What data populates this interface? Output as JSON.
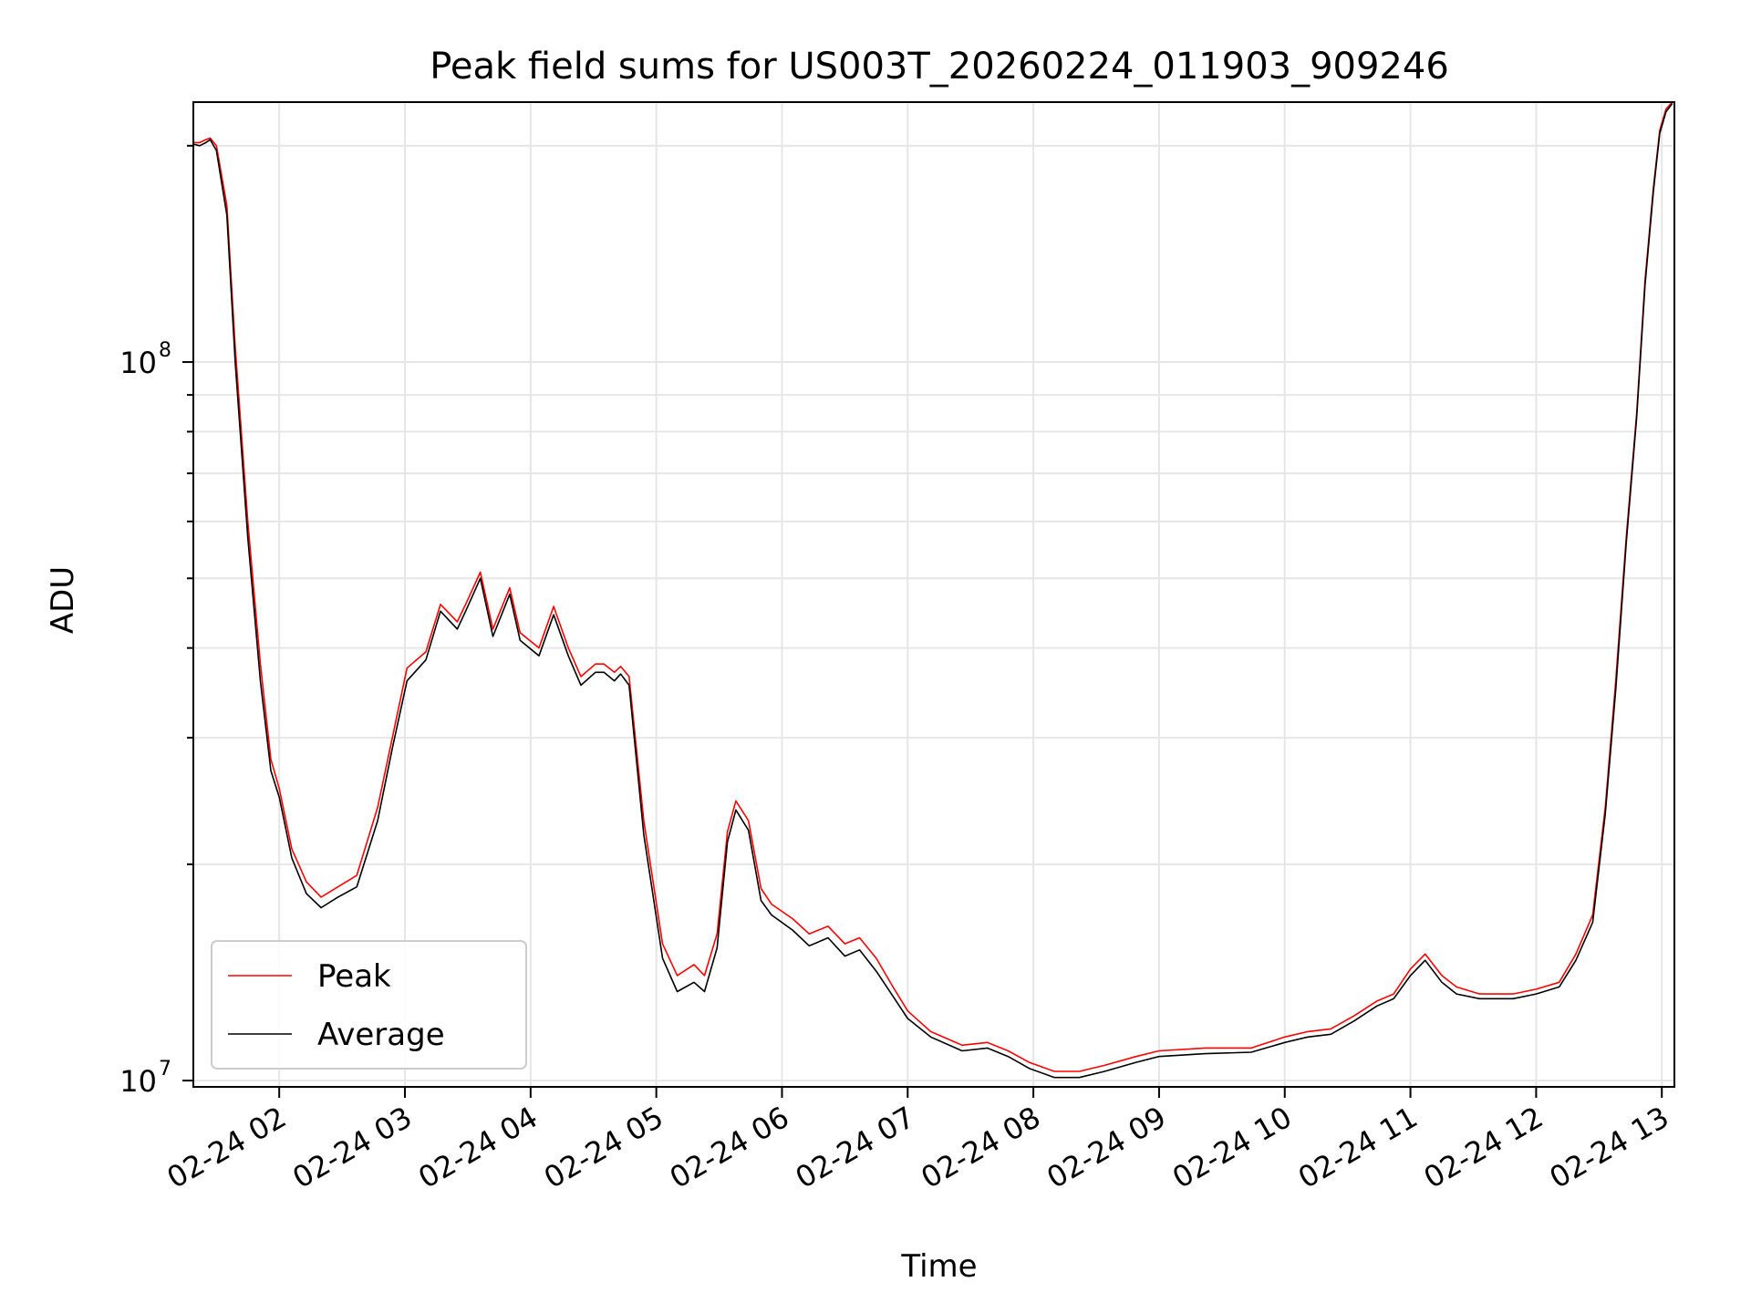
{
  "chart_data": {
    "type": "line",
    "title": "Peak field sums for US003T_20260224_011903_909246",
    "xlabel": "Time",
    "ylabel": "ADU",
    "yscale": "log",
    "ylim": [
      9800000,
      230000000
    ],
    "xlim": [
      "2026-02-24 01:19",
      "2026-02-24 13:06"
    ],
    "grid": true,
    "legend_position": "lower-left",
    "x_ticks": [
      {
        "value": "2026-02-24 02:00",
        "label": "02-24 02"
      },
      {
        "value": "2026-02-24 03:00",
        "label": "02-24 03"
      },
      {
        "value": "2026-02-24 04:00",
        "label": "02-24 04"
      },
      {
        "value": "2026-02-24 05:00",
        "label": "02-24 05"
      },
      {
        "value": "2026-02-24 06:00",
        "label": "02-24 06"
      },
      {
        "value": "2026-02-24 07:00",
        "label": "02-24 07"
      },
      {
        "value": "2026-02-24 08:00",
        "label": "02-24 08"
      },
      {
        "value": "2026-02-24 09:00",
        "label": "02-24 09"
      },
      {
        "value": "2026-02-24 10:00",
        "label": "02-24 10"
      },
      {
        "value": "2026-02-24 11:00",
        "label": "02-24 11"
      },
      {
        "value": "2026-02-24 12:00",
        "label": "02-24 12"
      },
      {
        "value": "2026-02-24 13:00",
        "label": "02-24 13"
      }
    ],
    "y_ticks": [
      {
        "value": 10000000,
        "base": "10",
        "exp": "7"
      },
      {
        "value": 100000000,
        "base": "10",
        "exp": "8"
      }
    ],
    "x": [
      "2026-02-24 01:19",
      "2026-02-24 01:22",
      "2026-02-24 01:25",
      "2026-02-24 01:27",
      "2026-02-24 01:30",
      "2026-02-24 01:35",
      "2026-02-24 01:39",
      "2026-02-24 01:45",
      "2026-02-24 01:51",
      "2026-02-24 01:56",
      "2026-02-24 02:00",
      "2026-02-24 02:06",
      "2026-02-24 02:13",
      "2026-02-24 02:20",
      "2026-02-24 02:28",
      "2026-02-24 02:37",
      "2026-02-24 02:47",
      "2026-02-24 02:54",
      "2026-02-24 03:01",
      "2026-02-24 03:10",
      "2026-02-24 03:17",
      "2026-02-24 03:25",
      "2026-02-24 03:29",
      "2026-02-24 03:36",
      "2026-02-24 03:42",
      "2026-02-24 03:50",
      "2026-02-24 03:55",
      "2026-02-24 04:04",
      "2026-02-24 04:11",
      "2026-02-24 04:18",
      "2026-02-24 04:24",
      "2026-02-24 04:31",
      "2026-02-24 04:35",
      "2026-02-24 04:40",
      "2026-02-24 04:43",
      "2026-02-24 04:47",
      "2026-02-24 04:54",
      "2026-02-24 05:03",
      "2026-02-24 05:10",
      "2026-02-24 05:18",
      "2026-02-24 05:23",
      "2026-02-24 05:29",
      "2026-02-24 05:34",
      "2026-02-24 05:38",
      "2026-02-24 05:44",
      "2026-02-24 05:50",
      "2026-02-24 05:55",
      "2026-02-24 06:05",
      "2026-02-24 06:13",
      "2026-02-24 06:22",
      "2026-02-24 06:30",
      "2026-02-24 06:37",
      "2026-02-24 06:45",
      "2026-02-24 06:53",
      "2026-02-24 07:00",
      "2026-02-24 07:11",
      "2026-02-24 07:26",
      "2026-02-24 07:38",
      "2026-02-24 07:48",
      "2026-02-24 07:58",
      "2026-02-24 08:10",
      "2026-02-24 08:22",
      "2026-02-24 08:34",
      "2026-02-24 08:49",
      "2026-02-24 09:00",
      "2026-02-24 09:22",
      "2026-02-24 09:44",
      "2026-02-24 10:00",
      "2026-02-24 10:11",
      "2026-02-24 10:22",
      "2026-02-24 10:33",
      "2026-02-24 10:44",
      "2026-02-24 10:52",
      "2026-02-24 11:00",
      "2026-02-24 11:07",
      "2026-02-24 11:15",
      "2026-02-24 11:22",
      "2026-02-24 11:33",
      "2026-02-24 11:49",
      "2026-02-24 12:00",
      "2026-02-24 12:11",
      "2026-02-24 12:19",
      "2026-02-24 12:27",
      "2026-02-24 12:33",
      "2026-02-24 12:38",
      "2026-02-24 12:43",
      "2026-02-24 12:48",
      "2026-02-24 12:52",
      "2026-02-24 12:56",
      "2026-02-24 12:59",
      "2026-02-24 13:02",
      "2026-02-24 13:05"
    ],
    "series": [
      {
        "name": "Peak",
        "color": "#ff0000",
        "values": [
          202000000,
          202000000,
          204000000,
          205000000,
          200000000,
          165000000,
          105000000,
          60000000,
          38000000,
          28000000,
          25500000,
          21000000,
          18900000,
          18000000,
          18600000,
          19300000,
          24000000,
          30000000,
          37500000,
          39500000,
          46000000,
          43500000,
          46000000,
          51000000,
          42500000,
          48500000,
          42000000,
          40000000,
          45700000,
          40000000,
          36500000,
          38000000,
          38000000,
          37000000,
          37700000,
          36500000,
          23000000,
          15500000,
          14000000,
          14500000,
          14000000,
          16000000,
          22200000,
          24500000,
          23000000,
          18500000,
          17600000,
          16800000,
          16000000,
          16400000,
          15500000,
          15800000,
          14800000,
          13500000,
          12500000,
          11700000,
          11200000,
          11300000,
          11000000,
          10600000,
          10300000,
          10300000,
          10500000,
          10800000,
          11000000,
          11100000,
          11100000,
          11500000,
          11700000,
          11800000,
          12300000,
          12900000,
          13200000,
          14300000,
          15000000,
          14000000,
          13500000,
          13200000,
          13200000,
          13400000,
          13700000,
          15000000,
          17000000,
          24000000,
          36000000,
          57000000,
          85000000,
          130000000,
          175000000,
          210000000,
          225000000,
          230000000
        ]
      },
      {
        "name": "Average",
        "color": "#000000",
        "values": [
          201000000,
          200000000,
          202000000,
          204000000,
          197000000,
          160000000,
          100000000,
          57000000,
          36000000,
          27000000,
          24800000,
          20400000,
          18200000,
          17400000,
          18000000,
          18600000,
          23000000,
          29000000,
          36000000,
          38500000,
          45000000,
          42500000,
          45000000,
          50000000,
          41500000,
          47500000,
          41000000,
          39000000,
          44500000,
          39000000,
          35500000,
          37000000,
          37000000,
          36000000,
          36800000,
          35500000,
          22000000,
          14800000,
          13300000,
          13700000,
          13300000,
          15300000,
          21500000,
          23800000,
          22300000,
          17800000,
          17000000,
          16200000,
          15400000,
          15800000,
          14900000,
          15200000,
          14200000,
          13100000,
          12200000,
          11500000,
          11000000,
          11100000,
          10800000,
          10400000,
          10100000,
          10100000,
          10300000,
          10600000,
          10800000,
          10900000,
          10950000,
          11300000,
          11500000,
          11600000,
          12100000,
          12700000,
          13000000,
          14000000,
          14700000,
          13700000,
          13200000,
          13000000,
          13000000,
          13200000,
          13500000,
          14700000,
          16600000,
          23500000,
          35000000,
          56000000,
          84000000,
          128000000,
          173000000,
          208000000,
          223000000,
          229000000
        ]
      }
    ]
  }
}
